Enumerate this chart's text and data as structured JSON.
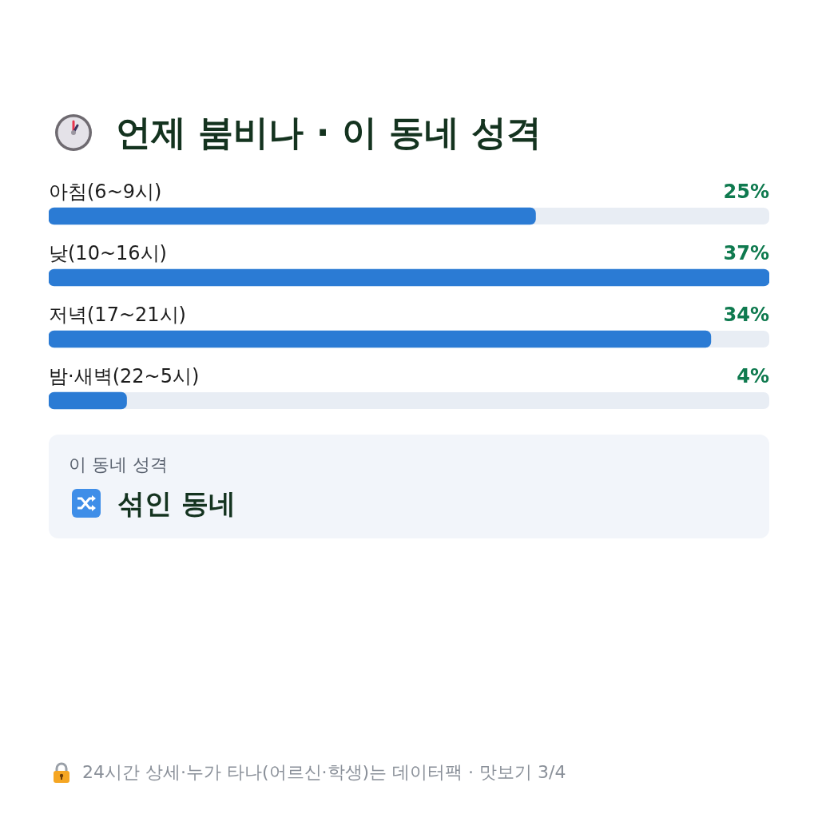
{
  "chart_data": {
    "type": "bar",
    "orientation": "horizontal",
    "title": "언제 붐비나 · 이 동네 성격",
    "categories": [
      "아침(6~9시)",
      "낮(10~16시)",
      "저녁(17~21시)",
      "밤·새벽(22~5시)"
    ],
    "values": [
      25,
      37,
      34,
      4
    ],
    "value_labels": [
      "25%",
      "37%",
      "34%",
      "4%"
    ],
    "color": "#2b7bd4",
    "annotations": [
      "이 동네 성격",
      "섞인 동네",
      "24시간 상세·누가 타나(어르신·학생)는 데이터팩 · 맛보기 3/4"
    ]
  }
}
